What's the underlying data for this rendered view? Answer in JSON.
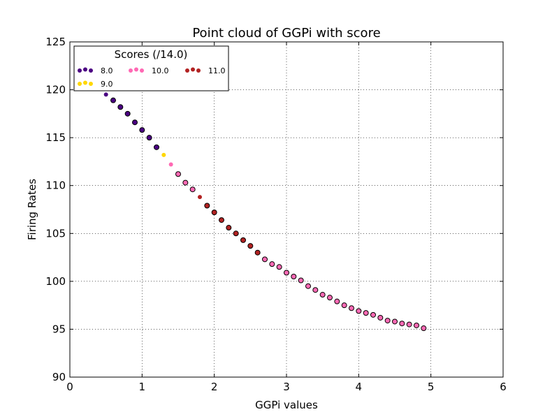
{
  "chart_data": {
    "type": "scatter",
    "title": "Point cloud of GGPi with score",
    "xlabel": "GGPi values",
    "ylabel": "Firing Rates",
    "xlim": [
      0,
      6
    ],
    "ylim": [
      90,
      125
    ],
    "xticks": [
      "0",
      "1",
      "2",
      "3",
      "4",
      "5",
      "6"
    ],
    "yticks": [
      "90",
      "95",
      "100",
      "105",
      "110",
      "115",
      "120",
      "125"
    ],
    "grid": true,
    "legend": {
      "title": "Scores (/14.0)",
      "placement": "top-left",
      "entries": [
        {
          "label": "8.0",
          "color": "#4b0082"
        },
        {
          "label": "10.0",
          "color": "#ff69b4"
        },
        {
          "label": "11.0",
          "color": "#b22222"
        },
        {
          "label": "9.0",
          "color": "#ffd700"
        }
      ]
    },
    "series": [
      {
        "name": "8.0",
        "color": "#4b0082",
        "edge": "none",
        "points": [
          [
            0.5,
            119.5
          ]
        ]
      },
      {
        "name": "8.0",
        "color": "#4b0082",
        "edge": "#000000",
        "points": [
          [
            0.6,
            118.9
          ],
          [
            0.7,
            118.2
          ],
          [
            0.8,
            117.5
          ],
          [
            0.9,
            116.6
          ],
          [
            1.0,
            115.8
          ],
          [
            1.1,
            115.0
          ],
          [
            1.2,
            114.0
          ]
        ]
      },
      {
        "name": "9.0",
        "color": "#ffd700",
        "edge": "none",
        "points": [
          [
            1.3,
            113.2
          ]
        ]
      },
      {
        "name": "10.0",
        "color": "#ff69b4",
        "edge": "none",
        "points": [
          [
            1.4,
            112.2
          ]
        ]
      },
      {
        "name": "10.0",
        "color": "#ff69b4",
        "edge": "#000000",
        "points": [
          [
            1.5,
            111.2
          ],
          [
            1.6,
            110.3
          ],
          [
            1.7,
            109.6
          ]
        ]
      },
      {
        "name": "11.0",
        "color": "#b22222",
        "edge": "none",
        "points": [
          [
            1.8,
            108.8
          ]
        ]
      },
      {
        "name": "11.0",
        "color": "#b22222",
        "edge": "#000000",
        "points": [
          [
            1.9,
            107.9
          ],
          [
            2.0,
            107.2
          ],
          [
            2.1,
            106.4
          ],
          [
            2.2,
            105.6
          ],
          [
            2.3,
            105.0
          ],
          [
            2.4,
            104.3
          ],
          [
            2.5,
            103.7
          ],
          [
            2.6,
            103.0
          ]
        ]
      },
      {
        "name": "10.0",
        "color": "#ff69b4",
        "edge": "#000000",
        "points": [
          [
            2.7,
            102.3
          ],
          [
            2.8,
            101.8
          ],
          [
            2.9,
            101.5
          ],
          [
            3.0,
            100.9
          ],
          [
            3.1,
            100.5
          ],
          [
            3.2,
            100.1
          ],
          [
            3.3,
            99.5
          ],
          [
            3.4,
            99.1
          ],
          [
            3.5,
            98.6
          ],
          [
            3.6,
            98.3
          ],
          [
            3.7,
            97.9
          ],
          [
            3.8,
            97.5
          ],
          [
            3.9,
            97.2
          ],
          [
            4.0,
            96.9
          ],
          [
            4.1,
            96.7
          ],
          [
            4.2,
            96.5
          ],
          [
            4.3,
            96.2
          ],
          [
            4.4,
            95.9
          ],
          [
            4.5,
            95.8
          ],
          [
            4.6,
            95.6
          ],
          [
            4.7,
            95.5
          ],
          [
            4.8,
            95.4
          ],
          [
            4.9,
            95.1
          ]
        ]
      }
    ]
  }
}
